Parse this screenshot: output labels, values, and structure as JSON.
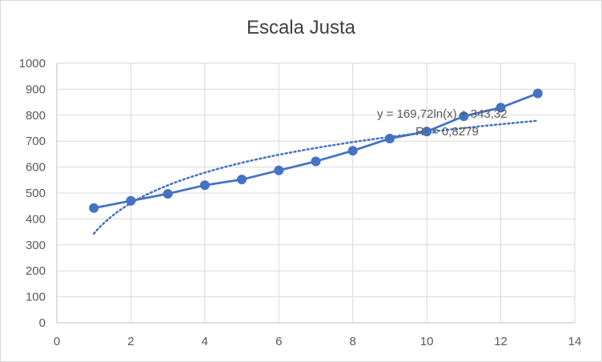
{
  "chart_data": {
    "type": "scatter",
    "title": "Escala Justa",
    "xlabel": "",
    "ylabel": "",
    "xlim": [
      0,
      14
    ],
    "ylim": [
      0,
      1000
    ],
    "x_ticks": [
      0,
      2,
      4,
      6,
      8,
      10,
      12,
      14
    ],
    "y_ticks": [
      0,
      100,
      200,
      300,
      400,
      500,
      600,
      700,
      800,
      900,
      1000
    ],
    "grid": true,
    "legend": "none",
    "series": [
      {
        "x": [
          1,
          2,
          3,
          4,
          5,
          6,
          7,
          8,
          9,
          10,
          11,
          12,
          13
        ],
        "y": [
          442,
          470,
          497,
          530,
          552,
          587,
          622,
          663,
          710,
          737,
          796,
          829,
          884
        ],
        "color": "#4472c4",
        "style": "line-with-markers"
      }
    ],
    "trendline": {
      "type": "logarithmic",
      "a": 169.72,
      "b": 343.32,
      "color": "#4472c4",
      "style": "dotted",
      "equation_label": "y = 169,72ln(x) + 343,32",
      "r2_label": "R² = 0,8279"
    }
  }
}
